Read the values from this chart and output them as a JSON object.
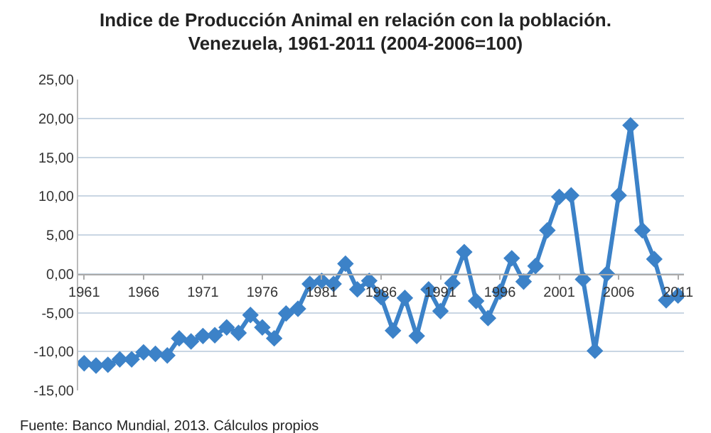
{
  "chart_data": {
    "type": "line",
    "title": "Indice de Producción Animal en relación con la población.\nVenezuela, 1961-2011 (2004-2006=100)",
    "x": [
      1961,
      1962,
      1963,
      1964,
      1965,
      1966,
      1967,
      1968,
      1969,
      1970,
      1971,
      1972,
      1973,
      1974,
      1975,
      1976,
      1977,
      1978,
      1979,
      1980,
      1981,
      1982,
      1983,
      1984,
      1985,
      1986,
      1987,
      1988,
      1989,
      1990,
      1991,
      1992,
      1993,
      1994,
      1995,
      1996,
      1997,
      1998,
      1999,
      2000,
      2001,
      2002,
      2003,
      2004,
      2005,
      2006,
      2007,
      2008,
      2009,
      2010,
      2011
    ],
    "series": [
      {
        "color": "#3c82c8",
        "values": [
          -11.5,
          -11.8,
          -11.7,
          -11.0,
          -11.0,
          -10.1,
          -10.3,
          -10.5,
          -8.3,
          -8.7,
          -8.0,
          -7.9,
          -6.9,
          -7.6,
          -5.3,
          -6.9,
          -8.3,
          -5.1,
          -4.5,
          -1.3,
          -0.9,
          -1.3,
          1.3,
          -2.0,
          -0.9,
          -3.0,
          -7.3,
          -3.1,
          -8.0,
          -2.0,
          -4.8,
          -1.2,
          2.8,
          -3.5,
          -5.7,
          -2.3,
          2.0,
          -1.0,
          1.0,
          5.6,
          9.9,
          10.1,
          -0.7,
          -9.9,
          0.0,
          10.1,
          19.1,
          5.6,
          1.9,
          -3.4,
          -2.8
        ]
      }
    ],
    "xlim": [
      1960.5,
      2011.5
    ],
    "xticks": [
      1961,
      1966,
      1971,
      1976,
      1981,
      1986,
      1991,
      1996,
      2001,
      2006,
      2011
    ],
    "ylim": [
      -15,
      25
    ],
    "yticks": [
      {
        "value": -15,
        "label": "-15,00"
      },
      {
        "value": -10,
        "label": "-10,00"
      },
      {
        "value": -5,
        "label": "-5,00"
      },
      {
        "value": 0,
        "label": "0,00"
      },
      {
        "value": 5,
        "label": "5,00"
      },
      {
        "value": 10,
        "label": "10,00"
      },
      {
        "value": 15,
        "label": "15,00"
      },
      {
        "value": 20,
        "label": "20,00"
      },
      {
        "value": 25,
        "label": "25,00"
      }
    ],
    "grid": "y",
    "marker": "diamond",
    "line_style": "solid",
    "annotations": [
      "Fuente: Banco Mundial, 2013. Cálculos propios"
    ]
  }
}
